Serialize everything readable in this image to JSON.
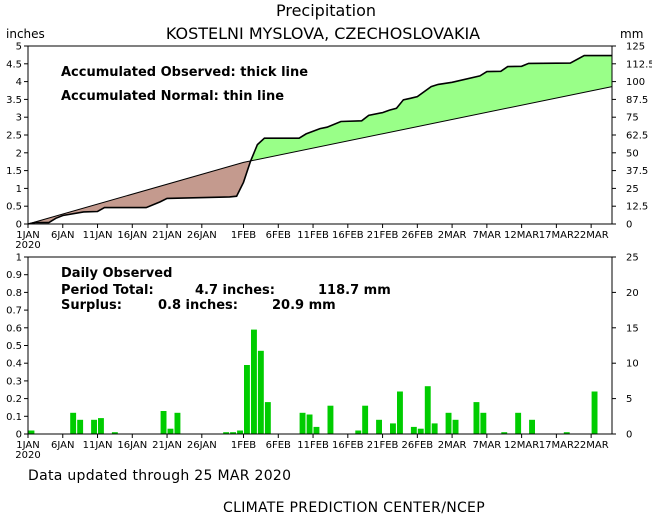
{
  "header": {
    "title": "Precipitation",
    "subtitle": "KOSTELNI MYSLOVA, CZECHOSLOVAKIA",
    "unit_left": "inches",
    "unit_right": "mm"
  },
  "footer": {
    "updated": "Data updated through 25 MAR 2020",
    "credit": "CLIMATE PREDICTION CENTER/NCEP"
  },
  "colors": {
    "surplus": "#99ff88",
    "deficit": "#c49a8e",
    "bars": "#00cc00",
    "lines": "#000000"
  },
  "chart_data": [
    {
      "type": "area",
      "legend": [
        "Accumulated Observed: thick line",
        "Accumulated Normal: thin line"
      ],
      "x_ticks": [
        "1JAN",
        "6JAN",
        "11JAN",
        "16JAN",
        "21JAN",
        "26JAN",
        "1FEB",
        "6FEB",
        "11FEB",
        "16FEB",
        "21FEB",
        "26FEB",
        "2MAR",
        "7MAR",
        "12MAR",
        "17MAR",
        "22MAR"
      ],
      "x_year_label": "2020",
      "xlim": [
        "2020-01-01",
        "2020-03-25"
      ],
      "ylim_left": [
        0,
        5
      ],
      "y_ticks_left": [
        "0",
        "0.5",
        "1",
        "1.5",
        "2",
        "2.5",
        "3",
        "3.5",
        "4",
        "4.5",
        "5"
      ],
      "ylim_right": [
        0,
        125
      ],
      "y_ticks_right": [
        "0",
        "12.5",
        "25",
        "37.5",
        "50",
        "62.5",
        "75",
        "87.5",
        "100",
        "112.5",
        "125"
      ],
      "series": [
        {
          "role": "observed",
          "style": "thick",
          "points": [
            [
              "2020-01-01",
              0.0
            ],
            [
              "2020-01-02",
              0.04
            ],
            [
              "2020-01-04",
              0.04
            ],
            [
              "2020-01-05",
              0.16
            ],
            [
              "2020-01-06",
              0.24
            ],
            [
              "2020-01-09",
              0.34
            ],
            [
              "2020-01-11",
              0.35
            ],
            [
              "2020-01-12",
              0.46
            ],
            [
              "2020-01-18",
              0.46
            ],
            [
              "2020-01-20",
              0.62
            ],
            [
              "2020-01-21",
              0.72
            ],
            [
              "2020-01-30",
              0.76
            ],
            [
              "2020-01-31",
              0.78
            ],
            [
              "2020-02-01",
              1.17
            ],
            [
              "2020-02-02",
              1.76
            ],
            [
              "2020-02-03",
              2.23
            ],
            [
              "2020-02-04",
              2.41
            ],
            [
              "2020-02-09",
              2.41
            ],
            [
              "2020-02-10",
              2.53
            ],
            [
              "2020-02-12",
              2.68
            ],
            [
              "2020-02-13",
              2.72
            ],
            [
              "2020-02-15",
              2.88
            ],
            [
              "2020-02-18",
              2.9
            ],
            [
              "2020-02-19",
              3.05
            ],
            [
              "2020-02-21",
              3.13
            ],
            [
              "2020-02-22",
              3.2
            ],
            [
              "2020-02-23",
              3.25
            ],
            [
              "2020-02-24",
              3.49
            ],
            [
              "2020-02-25",
              3.53
            ],
            [
              "2020-02-26",
              3.58
            ],
            [
              "2020-02-28",
              3.86
            ],
            [
              "2020-02-29",
              3.92
            ],
            [
              "2020-03-02",
              3.98
            ],
            [
              "2020-03-06",
              4.16
            ],
            [
              "2020-03-07",
              4.28
            ],
            [
              "2020-03-09",
              4.29
            ],
            [
              "2020-03-10",
              4.42
            ],
            [
              "2020-03-12",
              4.43
            ],
            [
              "2020-03-13",
              4.51
            ],
            [
              "2020-03-19",
              4.52
            ],
            [
              "2020-03-21",
              4.73
            ],
            [
              "2020-03-25",
              4.73
            ]
          ]
        },
        {
          "role": "normal",
          "style": "thin",
          "points": [
            [
              "2020-01-01",
              0.0
            ],
            [
              "2020-02-01",
              1.73
            ],
            [
              "2020-03-25",
              3.86
            ]
          ]
        }
      ]
    },
    {
      "type": "bar",
      "legend": [
        "Daily Observed"
      ],
      "annotations": {
        "total_label": "Period Total:",
        "total_in": "4.7 inches:",
        "total_mm": "118.7 mm",
        "surplus_label": "Surplus:",
        "surplus_in": "0.8 inches:",
        "surplus_mm": "20.9 mm"
      },
      "ylim_left": [
        0,
        1
      ],
      "y_ticks_left": [
        "0",
        "0.1",
        "0.2",
        "0.3",
        "0.4",
        "0.5",
        "0.6",
        "0.7",
        "0.8",
        "0.9",
        "1"
      ],
      "ylim_right": [
        0,
        25
      ],
      "y_ticks_right": [
        "0",
        "5",
        "10",
        "15",
        "20",
        "25"
      ],
      "x_ticks": [
        "1JAN",
        "6JAN",
        "11JAN",
        "16JAN",
        "21JAN",
        "26JAN",
        "1FEB",
        "6FEB",
        "11FEB",
        "16FEB",
        "21FEB",
        "26FEB",
        "2MAR",
        "7MAR",
        "12MAR",
        "17MAR",
        "22MAR"
      ],
      "x_year_label": "2020",
      "bars": [
        [
          "2020-01-01",
          0.02
        ],
        [
          "2020-01-07",
          0.12
        ],
        [
          "2020-01-08",
          0.08
        ],
        [
          "2020-01-10",
          0.08
        ],
        [
          "2020-01-11",
          0.09
        ],
        [
          "2020-01-13",
          0.01
        ],
        [
          "2020-01-20",
          0.13
        ],
        [
          "2020-01-21",
          0.03
        ],
        [
          "2020-01-22",
          0.12
        ],
        [
          "2020-01-29",
          0.01
        ],
        [
          "2020-01-30",
          0.01
        ],
        [
          "2020-01-31",
          0.02
        ],
        [
          "2020-02-01",
          0.39
        ],
        [
          "2020-02-02",
          0.59
        ],
        [
          "2020-02-03",
          0.47
        ],
        [
          "2020-02-04",
          0.18
        ],
        [
          "2020-02-09",
          0.12
        ],
        [
          "2020-02-10",
          0.11
        ],
        [
          "2020-02-11",
          0.04
        ],
        [
          "2020-02-13",
          0.16
        ],
        [
          "2020-02-17",
          0.02
        ],
        [
          "2020-02-18",
          0.16
        ],
        [
          "2020-02-20",
          0.08
        ],
        [
          "2020-02-22",
          0.06
        ],
        [
          "2020-02-23",
          0.24
        ],
        [
          "2020-02-25",
          0.04
        ],
        [
          "2020-02-26",
          0.03
        ],
        [
          "2020-02-27",
          0.27
        ],
        [
          "2020-02-28",
          0.06
        ],
        [
          "2020-03-01",
          0.12
        ],
        [
          "2020-03-02",
          0.08
        ],
        [
          "2020-03-05",
          0.18
        ],
        [
          "2020-03-06",
          0.12
        ],
        [
          "2020-03-09",
          0.01
        ],
        [
          "2020-03-11",
          0.12
        ],
        [
          "2020-03-13",
          0.08
        ],
        [
          "2020-03-18",
          0.01
        ],
        [
          "2020-03-22",
          0.24
        ]
      ]
    }
  ]
}
